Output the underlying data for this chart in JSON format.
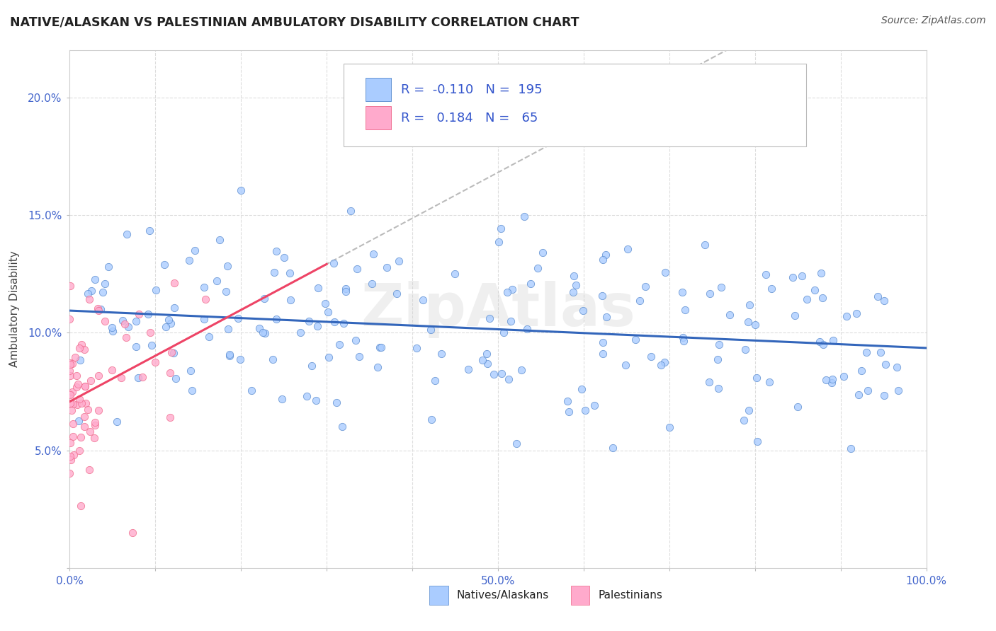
{
  "title": "NATIVE/ALASKAN VS PALESTINIAN AMBULATORY DISABILITY CORRELATION CHART",
  "source": "Source: ZipAtlas.com",
  "ylabel": "Ambulatory Disability",
  "xlim": [
    0.0,
    1.0
  ],
  "ylim": [
    0.0,
    0.22
  ],
  "ytick_labels": [
    "",
    "5.0%",
    "10.0%",
    "15.0%",
    "20.0%"
  ],
  "xtick_labels": [
    "0.0%",
    "",
    "",
    "",
    "",
    "50.0%",
    "",
    "",
    "",
    "",
    "100.0%"
  ],
  "legend_R1": "-0.110",
  "legend_N1": "195",
  "legend_R2": "0.184",
  "legend_N2": "65",
  "blue_fill": "#AACCFF",
  "blue_edge": "#5588CC",
  "pink_fill": "#FFAACC",
  "pink_edge": "#EE6688",
  "blue_line_color": "#3366BB",
  "pink_line_color": "#EE4466",
  "gray_dash_color": "#BBBBBB",
  "grid_color": "#DDDDDD",
  "title_color": "#222222",
  "source_color": "#555555",
  "tick_color": "#4466CC",
  "legend_value_color": "#3355CC",
  "watermark": "ZipAtlas",
  "blue_seed": 42,
  "pink_seed": 7,
  "N_blue": 195,
  "N_pink": 65
}
